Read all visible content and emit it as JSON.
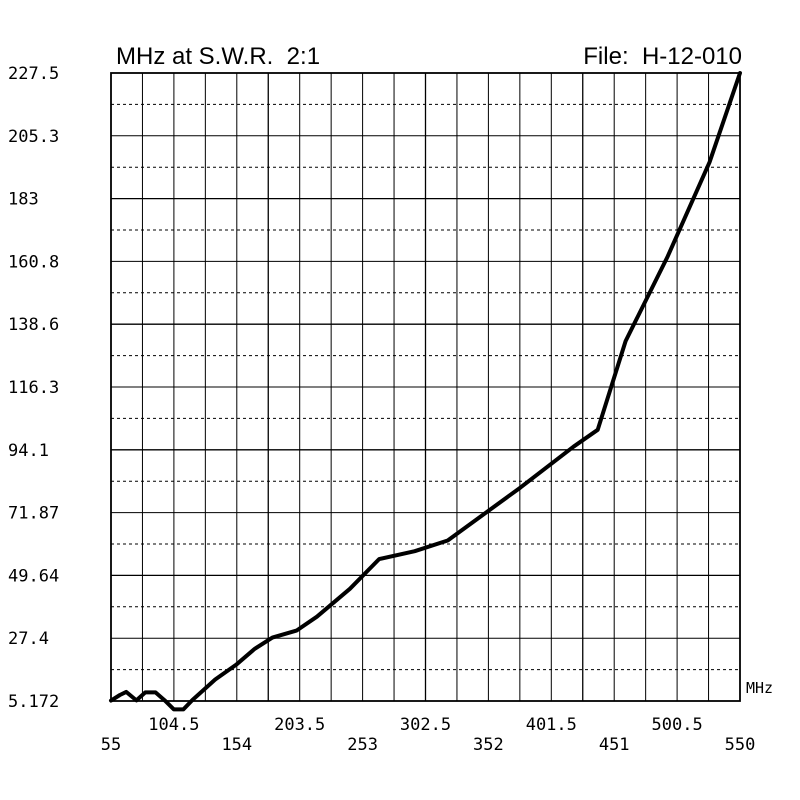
{
  "chart_data": {
    "type": "line",
    "title": "MHz at S.W.R.  2:1",
    "file_label": "File:  H-12-010",
    "xlabel": "MHz",
    "ylabel": "",
    "xlim": [
      55,
      550
    ],
    "ylim": [
      5.172,
      227.5
    ],
    "x_ticks_lower": [
      "55",
      "154",
      "253",
      "352",
      "451",
      "550"
    ],
    "x_ticks_upper": [
      "104.5",
      "203.5",
      "302.5",
      "401.5",
      "500.5"
    ],
    "y_ticks": [
      "227.5",
      "205.3",
      "183",
      "160.8",
      "138.6",
      "116.3",
      "94.1",
      "71.87",
      "49.64",
      "27.4",
      "5.172"
    ],
    "grid": true,
    "series": [
      {
        "x": [
          55,
          62,
          67,
          75,
          82,
          90,
          97,
          104.5,
          112,
          119,
          137,
          154,
          168,
          182,
          201,
          217,
          243,
          266,
          294,
          320,
          377,
          419,
          438,
          460,
          493,
          526,
          550
        ],
        "y": [
          5.3,
          7.3,
          8.4,
          5.4,
          8.2,
          8.2,
          5.5,
          2.2,
          2.2,
          5.5,
          12.8,
          18.2,
          23.6,
          27.6,
          30.1,
          35.0,
          44.9,
          55.4,
          58.2,
          62.0,
          80.7,
          95.2,
          101.2,
          132.6,
          162.5,
          195.9,
          227.5
        ]
      }
    ]
  }
}
